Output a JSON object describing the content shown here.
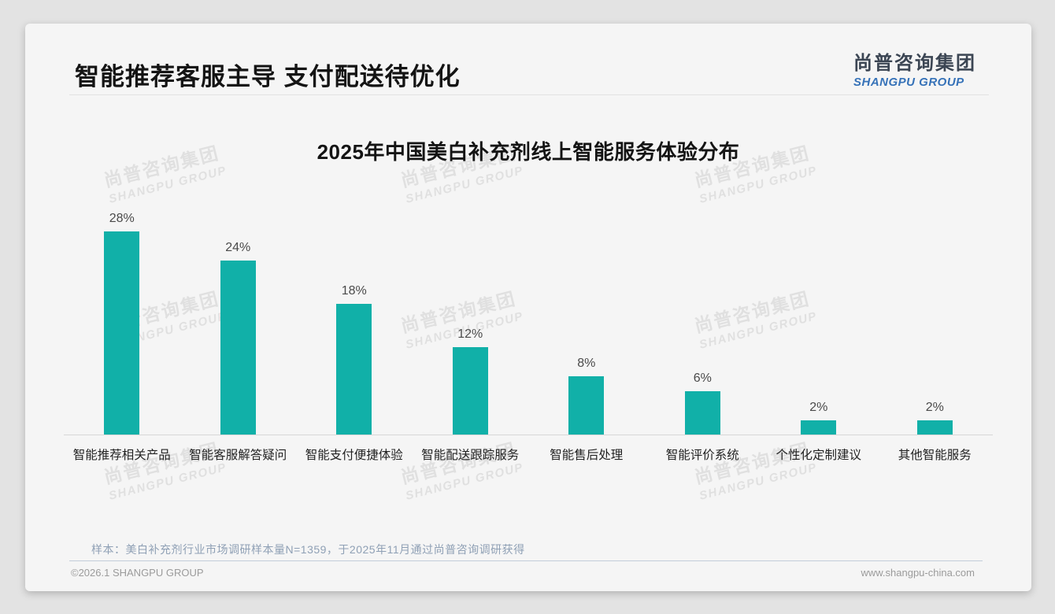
{
  "header": {
    "title": "智能推荐客服主导 支付配送待优化",
    "logo": {
      "cn": "尚普咨询集团",
      "en": "SHANGPU GROUP"
    }
  },
  "watermark": {
    "line1": "尚普咨询集团",
    "line2": "SHANGPU GROUP"
  },
  "chart_data": {
    "type": "bar",
    "title": "2025年中国美白补充剂线上智能服务体验分布",
    "categories": [
      "智能推荐相关产品",
      "智能客服解答疑问",
      "智能支付便捷体验",
      "智能配送跟踪服务",
      "智能售后处理",
      "智能评价系统",
      "个性化定制建议",
      "其他智能服务"
    ],
    "values": [
      28,
      24,
      18,
      12,
      8,
      6,
      2,
      2
    ],
    "value_labels": [
      "28%",
      "24%",
      "18%",
      "12%",
      "8%",
      "6%",
      "2%",
      "2%"
    ],
    "unit": "%",
    "ylim": [
      0,
      30
    ],
    "grid": false,
    "legend": false,
    "bar_color": "#11b0a8"
  },
  "footnote": "样本：美白补充剂行业市场调研样本量N=1359，于2025年11月通过尚普咨询调研获得",
  "footer": {
    "left": "©2026.1 SHANGPU GROUP",
    "right": "www.shangpu-china.com"
  },
  "colors": {
    "bar": "#11b0a8",
    "logo_blue": "#3672b8",
    "note_blue_gray": "#8fa0b5"
  }
}
